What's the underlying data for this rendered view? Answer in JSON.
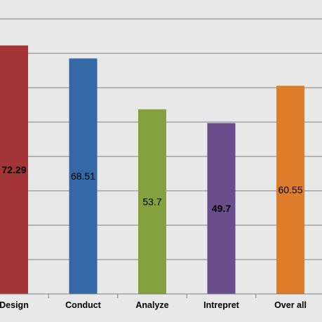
{
  "chart_data": {
    "type": "bar",
    "categories": [
      "Design",
      "Conduct",
      "Analyze",
      "Intrepret",
      "Over all"
    ],
    "values": [
      72.29,
      68.51,
      53.7,
      49.7,
      60.55
    ],
    "value_labels": [
      "72.29",
      "68.51",
      "53.7",
      "49.7",
      "60.55"
    ],
    "label_bold": [
      true,
      false,
      false,
      true,
      false
    ],
    "colors": [
      "#a33536",
      "#3468a6",
      "#83a23f",
      "#6a4d8c",
      "#dd7d2c"
    ],
    "ylim": [
      0,
      85
    ],
    "gridline_step": 10,
    "grid": true,
    "legend": "none",
    "title": "",
    "xlabel": "",
    "ylabel": ""
  }
}
